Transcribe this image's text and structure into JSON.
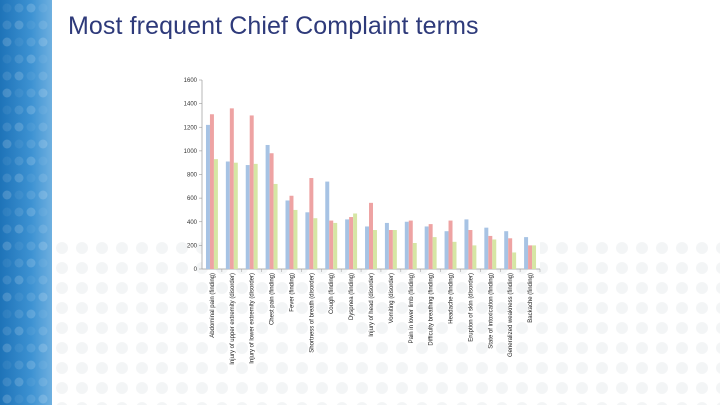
{
  "title": "Most frequent Chief Complaint terms",
  "chart_data": {
    "type": "bar",
    "categories": [
      "Abdominal pain (finding)",
      "Injury of upper extremity (disorder)",
      "Injury of lower extremity (disorder)",
      "Chest pain (finding)",
      "Fever (finding)",
      "Shortness of breath (disorder)",
      "Cough (finding)",
      "Dyspnea (finding)",
      "Injury of head (disorder)",
      "Vomiting (disorder)",
      "Pain in lower limb (finding)",
      "Difficulty breathing (finding)",
      "Headache (finding)",
      "Eruption of skin (disorder)",
      "State of intoxication (finding)",
      "Generalized weakness (finding)",
      "Backache (finding)"
    ],
    "series": [
      {
        "values": [
          1220,
          910,
          880,
          1050,
          580,
          480,
          740,
          420,
          360,
          390,
          400,
          360,
          320,
          420,
          350,
          320,
          270
        ]
      },
      {
        "values": [
          1310,
          1360,
          1300,
          980,
          620,
          770,
          410,
          440,
          560,
          330,
          410,
          380,
          410,
          330,
          280,
          260,
          200
        ]
      },
      {
        "values": [
          930,
          900,
          890,
          720,
          500,
          430,
          390,
          470,
          330,
          330,
          220,
          270,
          230,
          200,
          250,
          140,
          200
        ]
      }
    ],
    "colors": [
      "#a7c3e4",
      "#eea3a3",
      "#d6e6a4"
    ],
    "yticks": [
      0,
      200,
      400,
      600,
      800,
      1000,
      1200,
      1400,
      1600
    ],
    "ylim": [
      0,
      1600
    ],
    "xlabel": "",
    "ylabel": "",
    "grid": false,
    "legend": "none"
  }
}
